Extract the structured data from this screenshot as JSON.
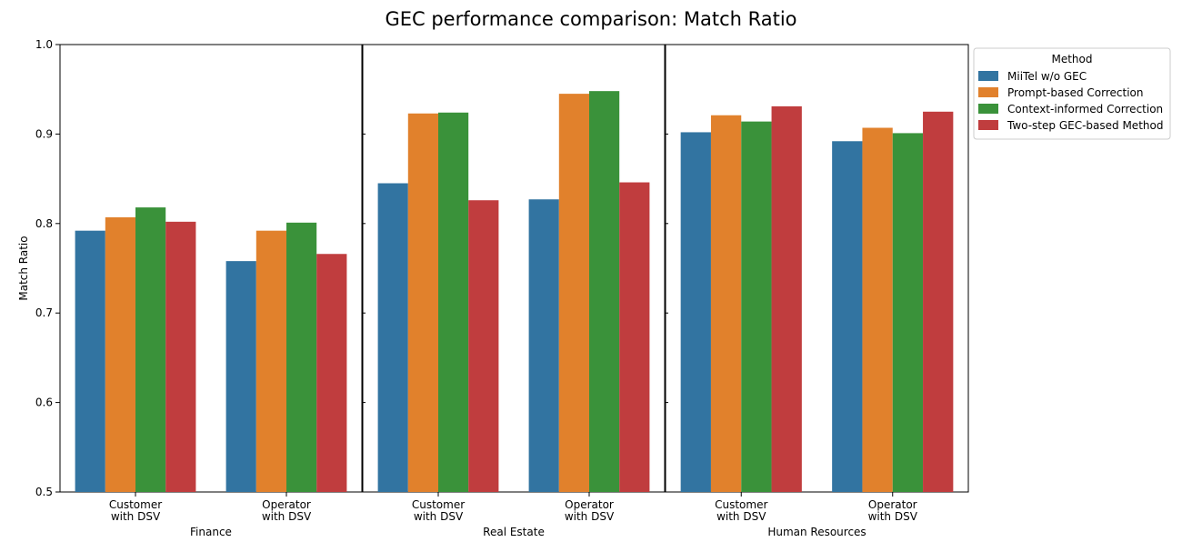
{
  "chart_data": {
    "type": "bar",
    "title": "GEC performance comparison: Match Ratio",
    "ylabel": "Match Ratio",
    "ylim": [
      0.5,
      1.0
    ],
    "yticks": [
      "0.5",
      "0.6",
      "0.7",
      "0.8",
      "0.9",
      "1.0"
    ],
    "grid": false,
    "legend": {
      "title": "Method",
      "placement": "right-outside-top",
      "entries": [
        {
          "name": "MiiTel w/o GEC",
          "color": "#3274a1"
        },
        {
          "name": "Prompt-based Correction",
          "color": "#e1812c"
        },
        {
          "name": "Context-informed Correction",
          "color": "#3a923a"
        },
        {
          "name": "Two-step GEC-based Method",
          "color": "#c03d3e"
        }
      ]
    },
    "panels": [
      {
        "xlabel": "Finance",
        "categories": [
          [
            "Customer",
            "with DSV"
          ],
          [
            "Operator",
            "with DSV"
          ]
        ],
        "series": [
          {
            "name": "MiiTel w/o GEC",
            "values": [
              0.792,
              0.758
            ]
          },
          {
            "name": "Prompt-based Correction",
            "values": [
              0.807,
              0.792
            ]
          },
          {
            "name": "Context-informed Correction",
            "values": [
              0.818,
              0.801
            ]
          },
          {
            "name": "Two-step GEC-based Method",
            "values": [
              0.802,
              0.766
            ]
          }
        ]
      },
      {
        "xlabel": "Real Estate",
        "categories": [
          [
            "Customer",
            "with DSV"
          ],
          [
            "Operator",
            "with DSV"
          ]
        ],
        "series": [
          {
            "name": "MiiTel w/o GEC",
            "values": [
              0.845,
              0.827
            ]
          },
          {
            "name": "Prompt-based Correction",
            "values": [
              0.923,
              0.945
            ]
          },
          {
            "name": "Context-informed Correction",
            "values": [
              0.924,
              0.948
            ]
          },
          {
            "name": "Two-step GEC-based Method",
            "values": [
              0.826,
              0.846
            ]
          }
        ]
      },
      {
        "xlabel": "Human Resources",
        "categories": [
          [
            "Customer",
            "with DSV"
          ],
          [
            "Operator",
            "with DSV"
          ]
        ],
        "series": [
          {
            "name": "MiiTel w/o GEC",
            "values": [
              0.902,
              0.892
            ]
          },
          {
            "name": "Prompt-based Correction",
            "values": [
              0.921,
              0.907
            ]
          },
          {
            "name": "Context-informed Correction",
            "values": [
              0.914,
              0.901
            ]
          },
          {
            "name": "Two-step GEC-based Method",
            "values": [
              0.931,
              0.925
            ]
          }
        ]
      }
    ]
  }
}
